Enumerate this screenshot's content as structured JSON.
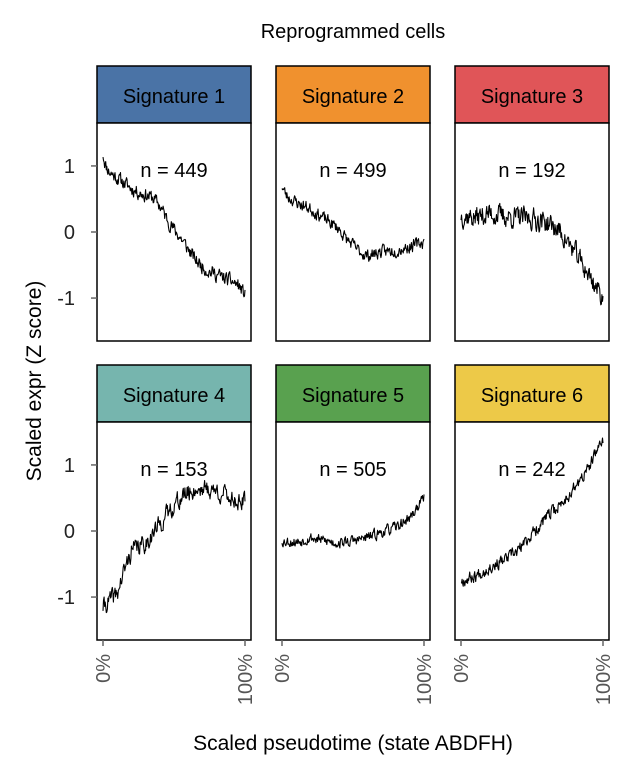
{
  "chart_data": {
    "type": "line",
    "title": "Reprogrammed cells",
    "xlabel": "Scaled pseudotime (state ABDFH)",
    "ylabel": "Scaled expr (Z score)",
    "x_ticks": [
      "0%",
      "100%"
    ],
    "y_ticks": [
      "1",
      "0",
      "-1"
    ],
    "ylim": [
      -1.65,
      1.65
    ],
    "panels": [
      {
        "name": "Signature 1",
        "color": "#4a73a6",
        "n_label": "n = 449",
        "noise": 0.09,
        "seed": 11,
        "trend": [
          [
            0,
            1.18
          ],
          [
            2,
            1.0
          ],
          [
            5,
            0.9
          ],
          [
            10,
            0.82
          ],
          [
            15,
            0.74
          ],
          [
            20,
            0.66
          ],
          [
            25,
            0.6
          ],
          [
            30,
            0.56
          ],
          [
            35,
            0.52
          ],
          [
            40,
            0.4
          ],
          [
            45,
            0.2
          ],
          [
            50,
            0.04
          ],
          [
            55,
            -0.1
          ],
          [
            60,
            -0.26
          ],
          [
            65,
            -0.42
          ],
          [
            70,
            -0.52
          ],
          [
            75,
            -0.6
          ],
          [
            80,
            -0.64
          ],
          [
            85,
            -0.7
          ],
          [
            90,
            -0.74
          ],
          [
            95,
            -0.8
          ],
          [
            100,
            -0.95
          ]
        ]
      },
      {
        "name": "Signature 2",
        "color": "#f0912e",
        "n_label": "n = 499",
        "noise": 0.08,
        "seed": 23,
        "trend": [
          [
            0,
            0.7
          ],
          [
            3,
            0.55
          ],
          [
            10,
            0.45
          ],
          [
            20,
            0.35
          ],
          [
            30,
            0.2
          ],
          [
            40,
            0.05
          ],
          [
            45,
            -0.1
          ],
          [
            50,
            -0.2
          ],
          [
            55,
            -0.3
          ],
          [
            60,
            -0.36
          ],
          [
            65,
            -0.33
          ],
          [
            70,
            -0.3
          ],
          [
            80,
            -0.28
          ],
          [
            90,
            -0.22
          ],
          [
            100,
            -0.15
          ]
        ]
      },
      {
        "name": "Signature 3",
        "color": "#e05558",
        "n_label": "n = 192",
        "noise": 0.14,
        "seed": 37,
        "trend": [
          [
            0,
            0.25
          ],
          [
            10,
            0.22
          ],
          [
            20,
            0.28
          ],
          [
            30,
            0.24
          ],
          [
            40,
            0.22
          ],
          [
            50,
            0.2
          ],
          [
            60,
            0.15
          ],
          [
            70,
            0.0
          ],
          [
            80,
            -0.3
          ],
          [
            90,
            -0.65
          ],
          [
            100,
            -1.0
          ]
        ]
      },
      {
        "name": "Signature 4",
        "color": "#76b5ae",
        "n_label": "n = 153",
        "noise": 0.12,
        "seed": 41,
        "trend": [
          [
            0,
            -1.15
          ],
          [
            10,
            -0.95
          ],
          [
            15,
            -0.6
          ],
          [
            20,
            -0.3
          ],
          [
            30,
            -0.18
          ],
          [
            40,
            0.1
          ],
          [
            50,
            0.4
          ],
          [
            60,
            0.58
          ],
          [
            70,
            0.65
          ],
          [
            80,
            0.6
          ],
          [
            90,
            0.5
          ],
          [
            100,
            0.42
          ]
        ]
      },
      {
        "name": "Signature 5",
        "color": "#59a14f",
        "n_label": "n = 505",
        "noise": 0.07,
        "seed": 53,
        "trend": [
          [
            0,
            -0.15
          ],
          [
            10,
            -0.17
          ],
          [
            20,
            -0.1
          ],
          [
            30,
            -0.15
          ],
          [
            40,
            -0.18
          ],
          [
            50,
            -0.15
          ],
          [
            60,
            -0.1
          ],
          [
            70,
            -0.02
          ],
          [
            80,
            0.05
          ],
          [
            90,
            0.2
          ],
          [
            100,
            0.5
          ]
        ]
      },
      {
        "name": "Signature 6",
        "color": "#edc948",
        "n_label": "n = 242",
        "noise": 0.08,
        "seed": 67,
        "trend": [
          [
            0,
            -0.75
          ],
          [
            10,
            -0.68
          ],
          [
            20,
            -0.55
          ],
          [
            30,
            -0.45
          ],
          [
            40,
            -0.3
          ],
          [
            50,
            -0.05
          ],
          [
            60,
            0.2
          ],
          [
            70,
            0.4
          ],
          [
            80,
            0.65
          ],
          [
            90,
            0.95
          ],
          [
            100,
            1.4
          ]
        ]
      }
    ]
  }
}
